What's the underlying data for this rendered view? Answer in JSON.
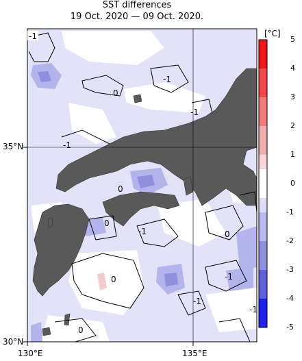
{
  "title": "SST differences",
  "subtitle": "19 Oct. 2020 — 09 Oct. 2020.",
  "axes": {
    "x_labels": [
      "130°E",
      "135°E"
    ],
    "y_labels": [
      "35°N",
      "30°N"
    ]
  },
  "colorbar": {
    "unit": "[°C]",
    "ticks": [
      "5",
      "4",
      "3",
      "2",
      "1",
      "0",
      "-1",
      "-2",
      "-3",
      "-4",
      "-5"
    ]
  },
  "contour_labels": [
    "-1",
    "0",
    "-1",
    "0",
    "-1",
    "-1",
    "-1",
    "0",
    "-1",
    "-1",
    "0",
    "-1",
    "0",
    "0"
  ],
  "colors": {
    "land": "#595959",
    "neutral_sea": "#ffffff",
    "cool_light": "#dcdcf6",
    "cool_mid": "#b9b9ee",
    "cool_strong": "#8f8fe0",
    "warm_light": "#f6dcdc"
  }
}
